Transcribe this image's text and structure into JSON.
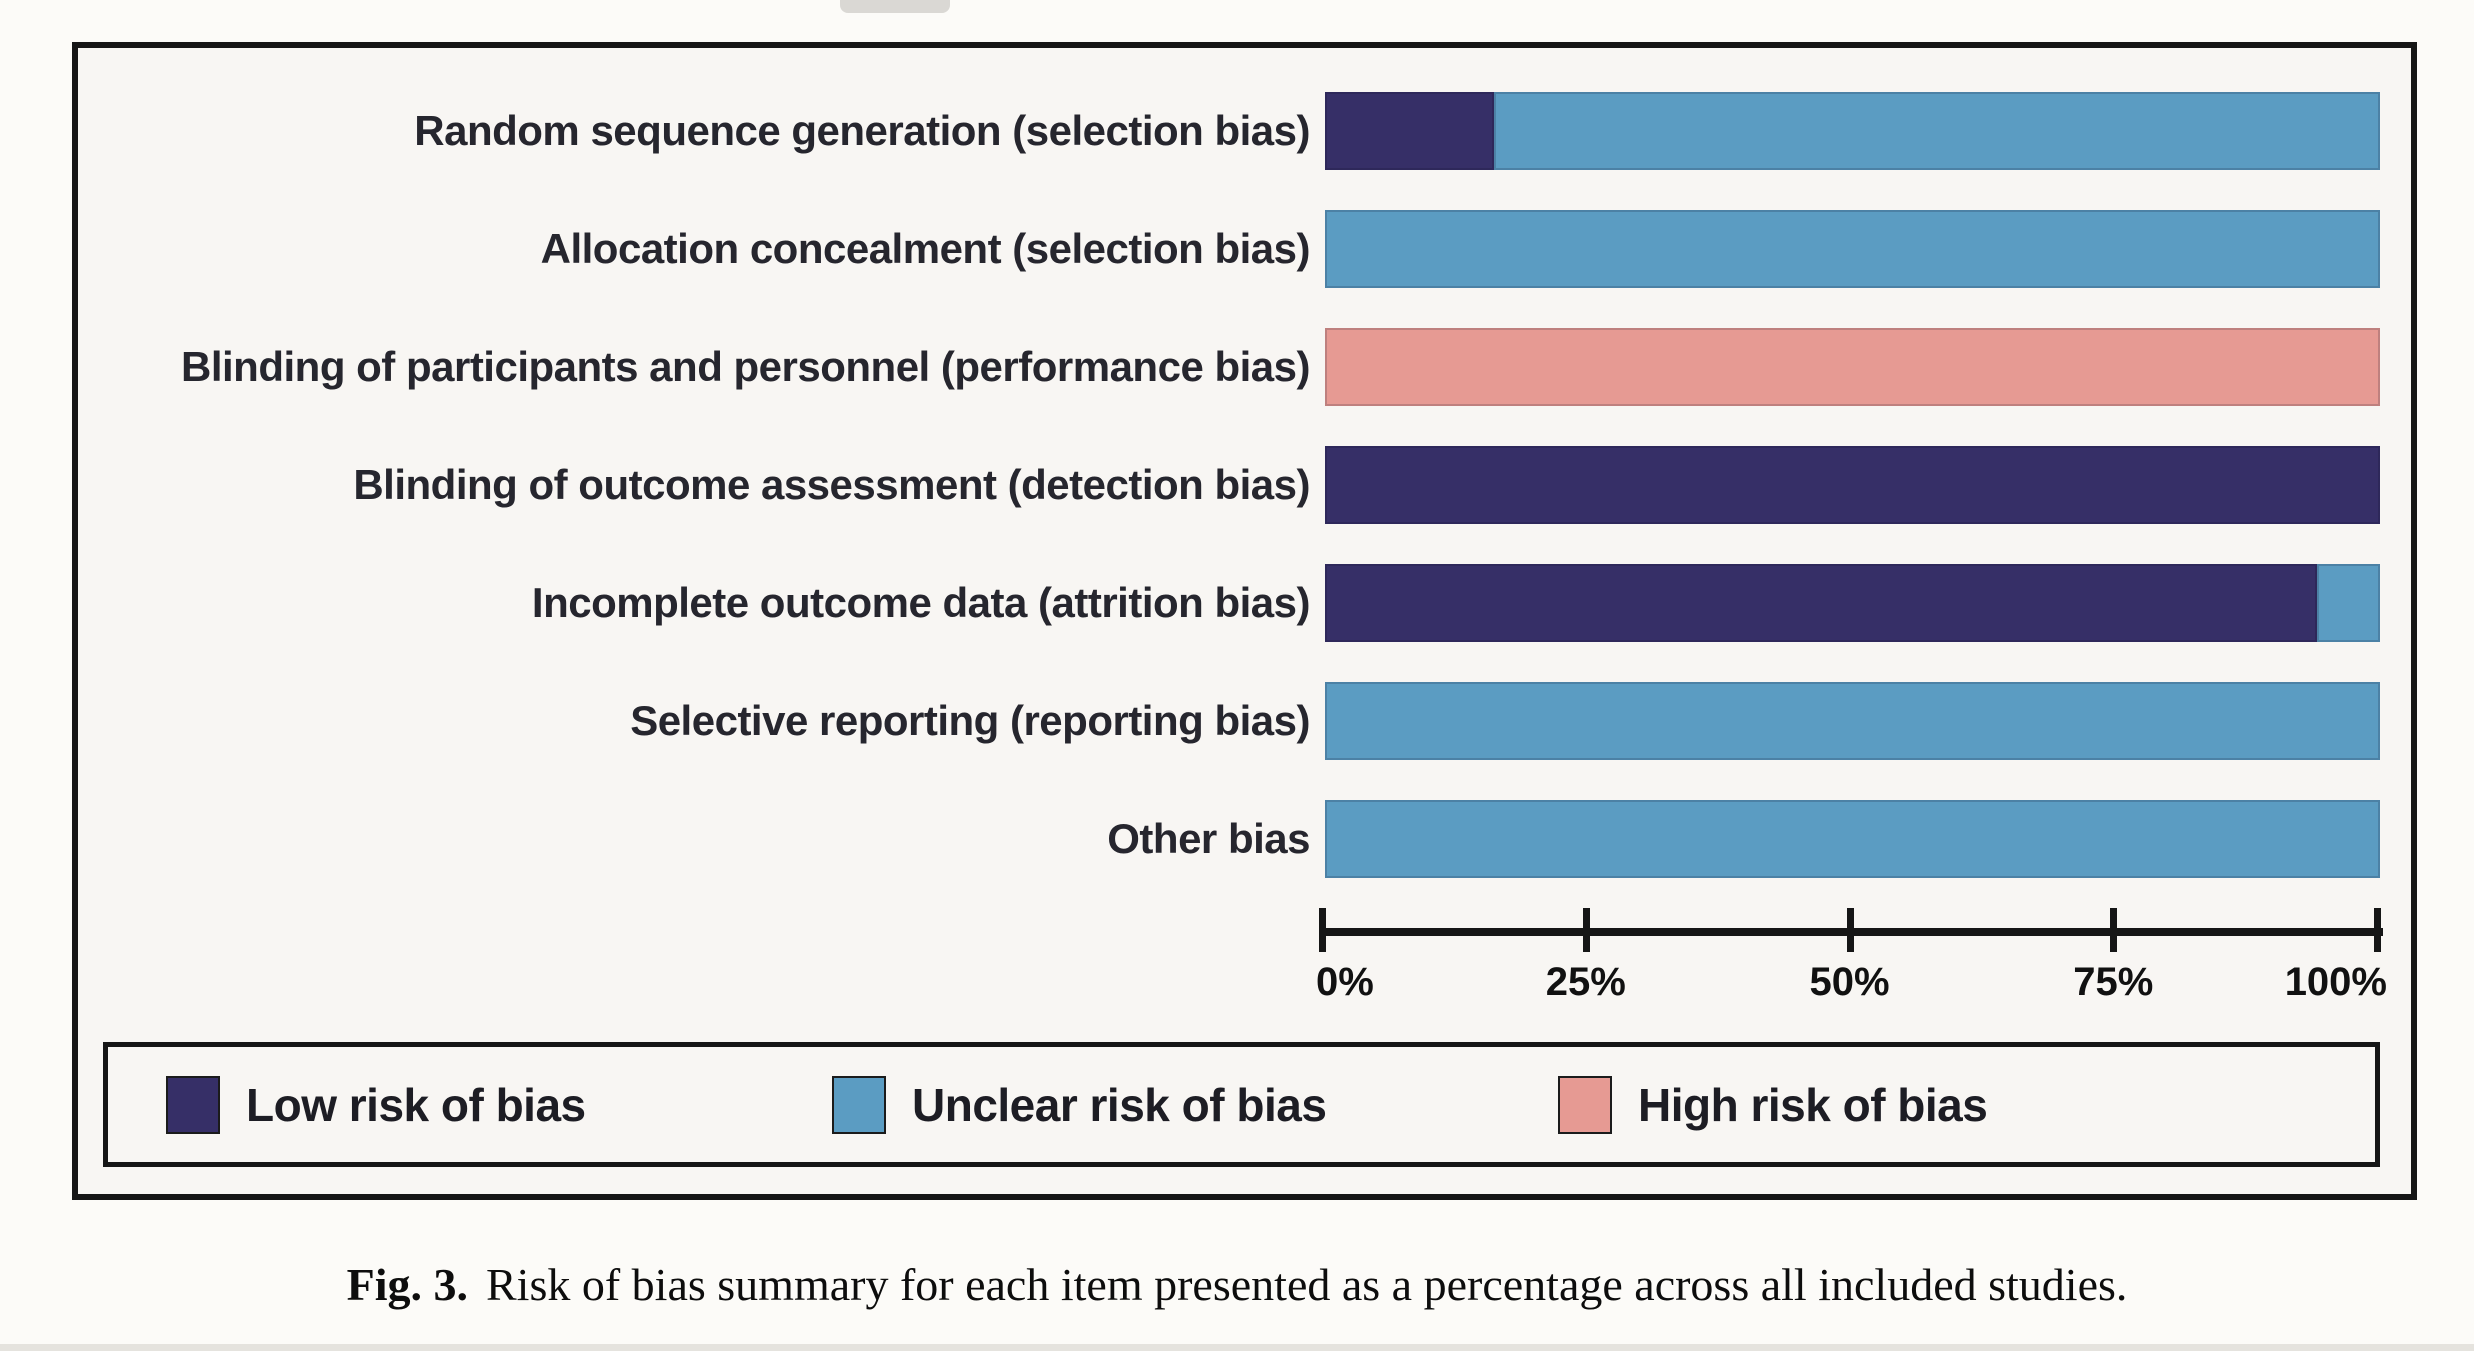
{
  "figure": {
    "caption_label": "Fig. 3.",
    "caption_text": "Risk of bias summary for each item presented as a percentage across all included studies."
  },
  "chart_data": {
    "type": "bar",
    "orientation": "horizontal-stacked",
    "title": "",
    "xlabel": "",
    "ylabel": "",
    "xlim": [
      0,
      100
    ],
    "x_ticks": [
      "0%",
      "25%",
      "50%",
      "75%",
      "100%"
    ],
    "x_tick_values": [
      0,
      25,
      50,
      75,
      100
    ],
    "grid": false,
    "legend_position": "bottom-box",
    "categories": [
      "Random sequence generation (selection bias)",
      "Allocation concealment (selection bias)",
      "Blinding of participants and personnel (performance bias)",
      "Blinding of outcome assessment (detection bias)",
      "Incomplete outcome data (attrition bias)",
      "Selective reporting (reporting bias)",
      "Other bias"
    ],
    "series": [
      {
        "name": "Low risk of bias",
        "color": "#362f67",
        "values": [
          16,
          0,
          0,
          100,
          94,
          0,
          0
        ]
      },
      {
        "name": "Unclear risk of bias",
        "color": "#5b9cc2",
        "values": [
          84,
          100,
          0,
          0,
          6,
          100,
          100
        ]
      },
      {
        "name": "High risk of bias",
        "color": "#e69a93",
        "values": [
          0,
          0,
          100,
          0,
          0,
          0,
          0
        ]
      }
    ]
  },
  "legend": {
    "items": [
      {
        "label": "Low risk of bias",
        "color": "#362f67"
      },
      {
        "label": "Unclear risk of bias",
        "color": "#5b9cc2"
      },
      {
        "label": "High risk of bias",
        "color": "#e69a93"
      }
    ]
  },
  "colors": {
    "frame_border": "#161616",
    "panel_background": "#f8f6f3",
    "page_background": "#fcfbf8",
    "axis": "#161616",
    "label_text": "#26262e"
  }
}
